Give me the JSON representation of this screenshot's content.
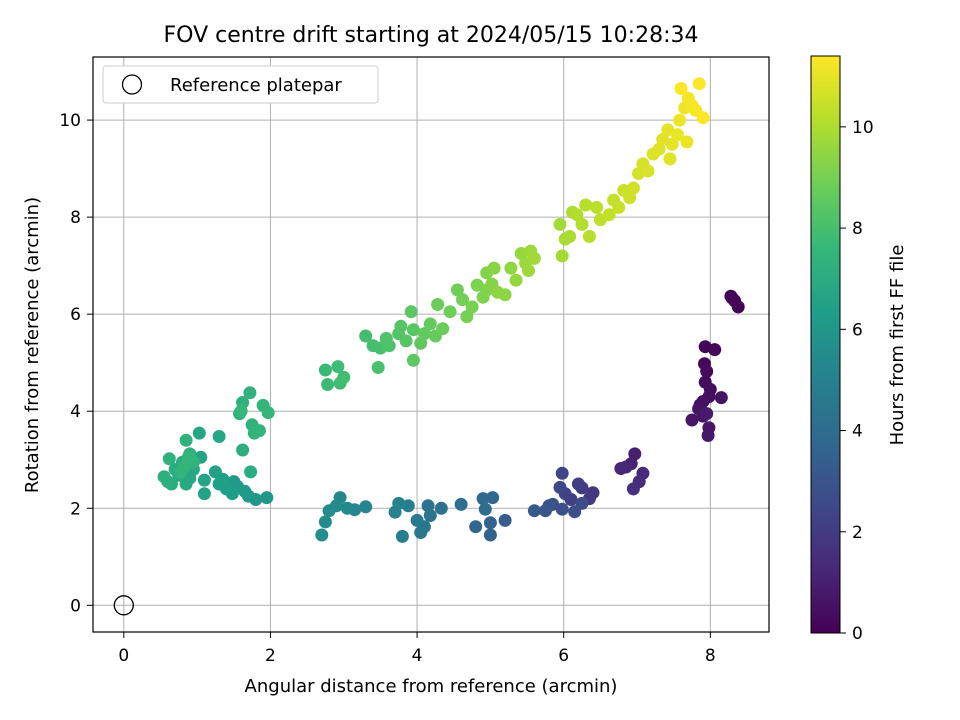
{
  "chart_data": {
    "type": "scatter",
    "title": "FOV centre drift starting at 2024/05/15 10:28:34",
    "xlabel": "Angular distance from reference (arcmin)",
    "ylabel": "Rotation from reference (arcmin)",
    "xlim": [
      -0.42,
      8.8
    ],
    "ylim": [
      -0.55,
      11.3
    ],
    "xticks": [
      0,
      2,
      4,
      6,
      8
    ],
    "yticks": [
      0,
      2,
      4,
      6,
      8,
      10
    ],
    "grid": true,
    "legend": {
      "placement": "upper-left",
      "entries": [
        "Reference platepar"
      ]
    },
    "reference_point": {
      "x": 0,
      "y": 0,
      "marker": "open-circle"
    },
    "colorbar": {
      "label": "Hours from first FF file",
      "colormap": "viridis",
      "range": [
        0,
        11.4
      ],
      "ticks": [
        0,
        2,
        4,
        6,
        8,
        10
      ]
    },
    "colormap_stops": [
      "#440154",
      "#482878",
      "#3e4989",
      "#31688e",
      "#26828e",
      "#1f9e89",
      "#35b779",
      "#6ece58",
      "#b5de2b",
      "#fde725"
    ],
    "series": [
      {
        "points": [
          [
            8.38,
            6.15,
            0.02
          ],
          [
            8.33,
            6.28,
            0.06
          ],
          [
            8.28,
            6.37,
            0.1
          ],
          [
            8.3,
            6.33,
            0.14
          ],
          [
            7.93,
            5.33,
            0.2
          ],
          [
            8.06,
            5.27,
            0.24
          ],
          [
            7.92,
            4.98,
            0.28
          ],
          [
            7.95,
            4.82,
            0.32
          ],
          [
            7.93,
            4.6,
            0.36
          ],
          [
            8.0,
            4.45,
            0.4
          ],
          [
            7.98,
            4.3,
            0.44
          ],
          [
            7.9,
            4.2,
            0.48
          ],
          [
            7.86,
            4.13,
            0.52
          ],
          [
            7.84,
            4.05,
            0.56
          ],
          [
            8.15,
            4.28,
            0.6
          ],
          [
            7.75,
            3.82,
            0.64
          ],
          [
            7.9,
            3.9,
            0.68
          ],
          [
            7.98,
            3.66,
            0.72
          ],
          [
            7.97,
            3.5,
            0.76
          ],
          [
            7.95,
            3.95,
            0.8
          ],
          [
            6.97,
            3.12,
            1.0
          ],
          [
            6.92,
            2.92,
            1.1
          ],
          [
            6.85,
            2.85,
            1.2
          ],
          [
            6.78,
            2.82,
            1.3
          ],
          [
            7.08,
            2.72,
            1.4
          ],
          [
            7.03,
            2.55,
            1.5
          ],
          [
            6.95,
            2.4,
            1.6
          ],
          [
            6.4,
            2.32,
            1.8
          ],
          [
            6.35,
            2.2,
            1.9
          ],
          [
            6.25,
            2.42,
            2.0
          ],
          [
            6.2,
            2.5,
            2.1
          ],
          [
            6.1,
            2.18,
            2.2
          ],
          [
            6.02,
            2.3,
            2.3
          ],
          [
            5.98,
            2.72,
            2.4
          ],
          [
            5.95,
            2.43,
            2.5
          ],
          [
            6.25,
            2.1,
            2.6
          ],
          [
            6.15,
            1.93,
            2.7
          ],
          [
            5.98,
            1.98,
            2.8
          ],
          [
            5.85,
            2.08,
            2.9
          ],
          [
            5.8,
            2.05,
            3.0
          ],
          [
            5.75,
            1.95,
            3.1
          ],
          [
            5.6,
            1.95,
            3.2
          ],
          [
            5.2,
            1.75,
            3.4
          ],
          [
            5.0,
            1.7,
            3.5
          ],
          [
            5.0,
            1.45,
            3.6
          ],
          [
            4.8,
            1.62,
            3.7
          ],
          [
            5.03,
            2.22,
            3.8
          ],
          [
            4.9,
            2.2,
            3.9
          ],
          [
            4.93,
            1.98,
            4.0
          ],
          [
            4.6,
            2.08,
            4.1
          ],
          [
            4.33,
            2.0,
            4.2
          ],
          [
            4.15,
            2.05,
            4.3
          ],
          [
            4.18,
            1.85,
            4.4
          ],
          [
            4.1,
            1.62,
            4.5
          ],
          [
            4.05,
            1.5,
            4.6
          ],
          [
            4.0,
            1.75,
            4.7
          ],
          [
            3.88,
            2.05,
            4.8
          ],
          [
            3.8,
            1.42,
            4.9
          ],
          [
            3.7,
            1.92,
            5.0
          ],
          [
            3.75,
            2.1,
            5.1
          ],
          [
            3.3,
            2.03,
            5.2
          ],
          [
            3.15,
            1.97,
            5.3
          ],
          [
            3.05,
            2.0,
            5.35
          ],
          [
            2.95,
            2.22,
            5.4
          ],
          [
            2.9,
            2.05,
            5.45
          ],
          [
            2.8,
            1.95,
            5.5
          ],
          [
            2.75,
            1.72,
            5.55
          ],
          [
            2.7,
            1.45,
            5.6
          ],
          [
            1.95,
            2.22,
            6.0
          ],
          [
            1.8,
            2.18,
            6.05
          ],
          [
            1.7,
            2.25,
            6.1
          ],
          [
            1.65,
            2.35,
            6.15
          ],
          [
            1.55,
            2.45,
            6.2
          ],
          [
            1.5,
            2.55,
            6.25
          ],
          [
            1.48,
            2.3,
            6.3
          ],
          [
            1.4,
            2.4,
            6.35
          ],
          [
            1.35,
            2.6,
            6.4
          ],
          [
            1.3,
            2.5,
            6.45
          ],
          [
            1.25,
            2.75,
            6.5
          ],
          [
            1.1,
            2.3,
            6.55
          ],
          [
            1.1,
            2.58,
            6.6
          ],
          [
            1.05,
            3.05,
            6.65
          ],
          [
            1.03,
            3.55,
            6.7
          ],
          [
            1.3,
            3.48,
            6.75
          ],
          [
            0.95,
            2.8,
            6.8
          ],
          [
            0.9,
            2.62,
            6.85
          ],
          [
            0.85,
            2.5,
            6.9
          ],
          [
            0.8,
            2.95,
            6.95
          ],
          [
            0.75,
            2.68,
            7.0
          ],
          [
            0.7,
            2.8,
            7.05
          ],
          [
            0.65,
            2.5,
            7.1
          ],
          [
            0.6,
            2.55,
            7.15
          ],
          [
            0.55,
            2.65,
            7.2
          ],
          [
            0.62,
            3.02,
            7.25
          ],
          [
            0.85,
            3.4,
            7.3
          ],
          [
            0.9,
            3.12,
            7.35
          ],
          [
            0.95,
            2.95,
            7.4
          ],
          [
            0.78,
            2.75,
            7.45
          ],
          [
            0.82,
            2.85,
            7.5
          ],
          [
            0.88,
            3.05,
            7.55
          ],
          [
            1.73,
            2.75,
            7.1
          ],
          [
            1.62,
            3.2,
            7.15
          ],
          [
            1.58,
            3.95,
            7.2
          ],
          [
            1.62,
            4.18,
            7.25
          ],
          [
            1.72,
            4.38,
            7.3
          ],
          [
            1.75,
            3.72,
            7.35
          ],
          [
            1.78,
            3.55,
            7.4
          ],
          [
            1.85,
            3.6,
            7.45
          ],
          [
            1.9,
            4.12,
            7.5
          ],
          [
            1.97,
            3.97,
            7.55
          ],
          [
            1.6,
            4.0,
            7.6
          ],
          [
            2.75,
            4.85,
            7.7
          ],
          [
            2.78,
            4.55,
            7.75
          ],
          [
            2.92,
            4.92,
            7.8
          ],
          [
            2.95,
            4.58,
            7.85
          ],
          [
            3.0,
            4.7,
            7.9
          ],
          [
            3.3,
            5.55,
            7.95
          ],
          [
            3.4,
            5.35,
            8.0
          ],
          [
            3.5,
            5.3,
            8.05
          ],
          [
            3.47,
            4.9,
            8.1
          ],
          [
            3.62,
            5.35,
            8.15
          ],
          [
            3.58,
            5.5,
            8.2
          ],
          [
            3.75,
            5.6,
            8.25
          ],
          [
            3.78,
            5.75,
            8.3
          ],
          [
            3.85,
            5.45,
            8.35
          ],
          [
            3.95,
            5.68,
            8.4
          ],
          [
            3.92,
            6.05,
            8.45
          ],
          [
            3.95,
            5.05,
            8.5
          ],
          [
            4.05,
            5.4,
            8.55
          ],
          [
            4.1,
            5.6,
            8.6
          ],
          [
            4.18,
            5.8,
            8.65
          ],
          [
            4.25,
            5.55,
            8.7
          ],
          [
            4.35,
            5.7,
            8.75
          ],
          [
            4.28,
            6.2,
            8.8
          ],
          [
            4.45,
            6.05,
            8.85
          ],
          [
            4.55,
            6.5,
            8.9
          ],
          [
            4.62,
            6.3,
            8.95
          ],
          [
            4.68,
            5.95,
            9.0
          ],
          [
            4.75,
            6.15,
            9.05
          ],
          [
            4.82,
            6.6,
            9.1
          ],
          [
            4.9,
            6.35,
            9.15
          ],
          [
            4.95,
            6.5,
            9.2
          ],
          [
            4.95,
            6.85,
            9.25
          ],
          [
            5.02,
            6.62,
            9.3
          ],
          [
            5.05,
            6.95,
            9.35
          ],
          [
            5.1,
            6.45,
            9.4
          ],
          [
            5.2,
            6.4,
            9.45
          ],
          [
            5.28,
            6.95,
            9.5
          ],
          [
            5.35,
            6.7,
            9.55
          ],
          [
            5.42,
            7.25,
            9.6
          ],
          [
            5.48,
            7.05,
            9.65
          ],
          [
            5.55,
            7.3,
            9.7
          ],
          [
            5.6,
            7.15,
            9.75
          ],
          [
            5.52,
            6.9,
            9.7
          ],
          [
            5.95,
            7.85,
            9.8
          ],
          [
            5.98,
            7.2,
            9.85
          ],
          [
            6.02,
            7.55,
            9.9
          ],
          [
            6.08,
            7.6,
            9.95
          ],
          [
            6.12,
            8.1,
            10.0
          ],
          [
            6.18,
            8.05,
            10.05
          ],
          [
            6.25,
            7.85,
            10.1
          ],
          [
            6.3,
            8.25,
            10.15
          ],
          [
            6.35,
            7.6,
            10.2
          ],
          [
            6.45,
            8.2,
            10.25
          ],
          [
            6.5,
            7.95,
            10.3
          ],
          [
            6.62,
            8.05,
            10.35
          ],
          [
            6.68,
            8.35,
            10.4
          ],
          [
            6.75,
            8.2,
            10.45
          ],
          [
            6.82,
            8.55,
            10.5
          ],
          [
            6.9,
            8.4,
            10.55
          ],
          [
            6.95,
            8.6,
            10.6
          ],
          [
            7.02,
            8.9,
            10.65
          ],
          [
            7.08,
            9.1,
            10.7
          ],
          [
            7.15,
            8.95,
            10.75
          ],
          [
            7.22,
            9.3,
            10.8
          ],
          [
            7.3,
            9.4,
            10.85
          ],
          [
            7.35,
            9.6,
            10.9
          ],
          [
            7.42,
            9.8,
            10.95
          ],
          [
            7.48,
            9.5,
            11.0
          ],
          [
            7.55,
            9.7,
            11.05
          ],
          [
            7.58,
            10.0,
            11.1
          ],
          [
            7.65,
            10.25,
            11.15
          ],
          [
            7.7,
            10.45,
            11.2
          ],
          [
            7.75,
            10.3,
            11.25
          ],
          [
            7.8,
            10.2,
            11.3
          ],
          [
            7.85,
            10.75,
            11.35
          ],
          [
            7.9,
            10.05,
            11.38
          ],
          [
            7.6,
            10.65,
            11.4
          ],
          [
            7.68,
            9.55,
            11.1
          ],
          [
            7.45,
            9.2,
            10.9
          ]
        ]
      }
    ]
  }
}
